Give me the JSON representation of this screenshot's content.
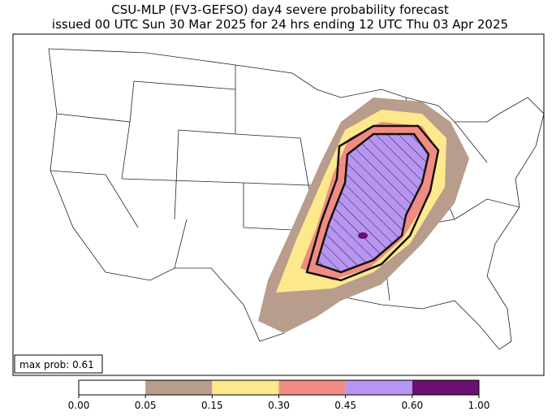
{
  "header": {
    "title": "CSU-MLP (FV3-GEFSO) day4 severe probability forecast",
    "subtitle": "issued 00 UTC Sun 30 Mar 2025 for 24 hrs ending 12 UTC Thu 03 Apr 2025"
  },
  "annotation": "max prob: 0.61",
  "colorbar": {
    "ticks": [
      {
        "value": 0,
        "label": "0.00"
      },
      {
        "value": 0.05,
        "label": "0.05"
      },
      {
        "value": 0.15,
        "label": "0.15"
      },
      {
        "value": 0.3,
        "label": "0.30"
      },
      {
        "value": 0.45,
        "label": "0.45"
      },
      {
        "value": 0.6,
        "label": "0.60"
      },
      {
        "value": 1,
        "label": "1.00"
      }
    ],
    "colors": [
      "#ffffff",
      "#b89c8c",
      "#fde98c",
      "#f08c82",
      "#b795f2",
      "#6b0f72"
    ]
  }
}
